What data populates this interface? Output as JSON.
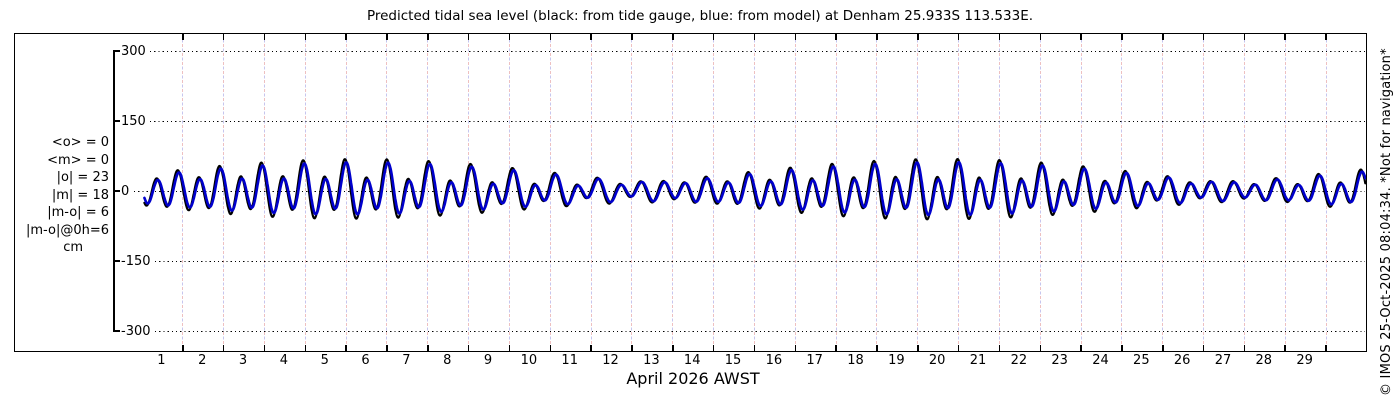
{
  "title": "Predicted tidal sea level (black: from tide gauge, blue: from model) at Denham 25.933S 113.533E.",
  "watermark": "© IMOS 25-Oct-2025 08:04:34. *Not for navigation*",
  "stats": {
    "lines": [
      "<o> = 0",
      "<m> = 0",
      "|o| = 23",
      "|m| = 18",
      "|m-o| = 6",
      "|m-o|@0h=6",
      "cm"
    ]
  },
  "colors": {
    "gauge": "#000000",
    "model": "#0000cc",
    "grid_pink": "#e18c8c",
    "grid_lavender": "#9696e1",
    "axis": "#000000"
  },
  "chart_data": {
    "type": "line",
    "title": "Predicted tidal sea level (black: from tide gauge, blue: from model) at Denham 25.933S 113.533E.",
    "station": {
      "name": "Denham",
      "lat": "25.933S",
      "lon": "113.533E"
    },
    "xlabel": "April 2026 AWST",
    "ylabel_units": "cm",
    "xlim_days": [
      0,
      30
    ],
    "ylim": [
      -300,
      300
    ],
    "yticks": [
      300,
      150,
      0,
      -150,
      -300
    ],
    "xtick_day_labels": [
      1,
      2,
      3,
      4,
      5,
      6,
      7,
      8,
      9,
      10,
      11,
      12,
      13,
      14,
      15,
      16,
      17,
      18,
      19,
      20,
      21,
      22,
      23,
      24,
      25,
      26,
      27,
      28,
      29
    ],
    "grid": {
      "vertical_day_lines": true,
      "horizontal_dotted_levels": true,
      "legend_position": "in-title"
    },
    "legend": {
      "black": "from tide gauge",
      "blue": "from model"
    },
    "stats_cm": {
      "mean_o": 0,
      "mean_m": 0,
      "mean_abs_o": 23,
      "mean_abs_m": 18,
      "mean_abs_m_minus_o": 6,
      "mean_abs_m_minus_o_at_0h": 6
    },
    "sampling": {
      "t_start_days": 0.06,
      "t_end_days": 29.97,
      "dt_days": 0.01
    },
    "series": [
      {
        "name": "tide gauge",
        "color": "#000000",
        "stroke_width": 2.2,
        "constituents": [
          {
            "A_cm": 34.0,
            "period_days": 0.5175,
            "t_peak_days": 19.47
          },
          {
            "A_cm": 15.0,
            "period_days": 0.5,
            "t_peak_days": 19.47
          },
          {
            "A_cm": 13.2,
            "period_days": 0.99726,
            "t_peak_days": 19.9
          },
          {
            "A_cm": 9.0,
            "period_days": 1.0758,
            "t_peak_days": 19.9
          }
        ]
      },
      {
        "name": "model",
        "color": "#0000cc",
        "stroke_width": 2.6,
        "constituents": [
          {
            "A_cm": 30.0,
            "period_days": 0.5175,
            "t_peak_days": 19.5
          },
          {
            "A_cm": 13.0,
            "period_days": 0.5,
            "t_peak_days": 19.5
          },
          {
            "A_cm": 12.0,
            "period_days": 0.99726,
            "t_peak_days": 19.95
          },
          {
            "A_cm": 8.0,
            "period_days": 1.0758,
            "t_peak_days": 19.95
          }
        ]
      }
    ]
  }
}
